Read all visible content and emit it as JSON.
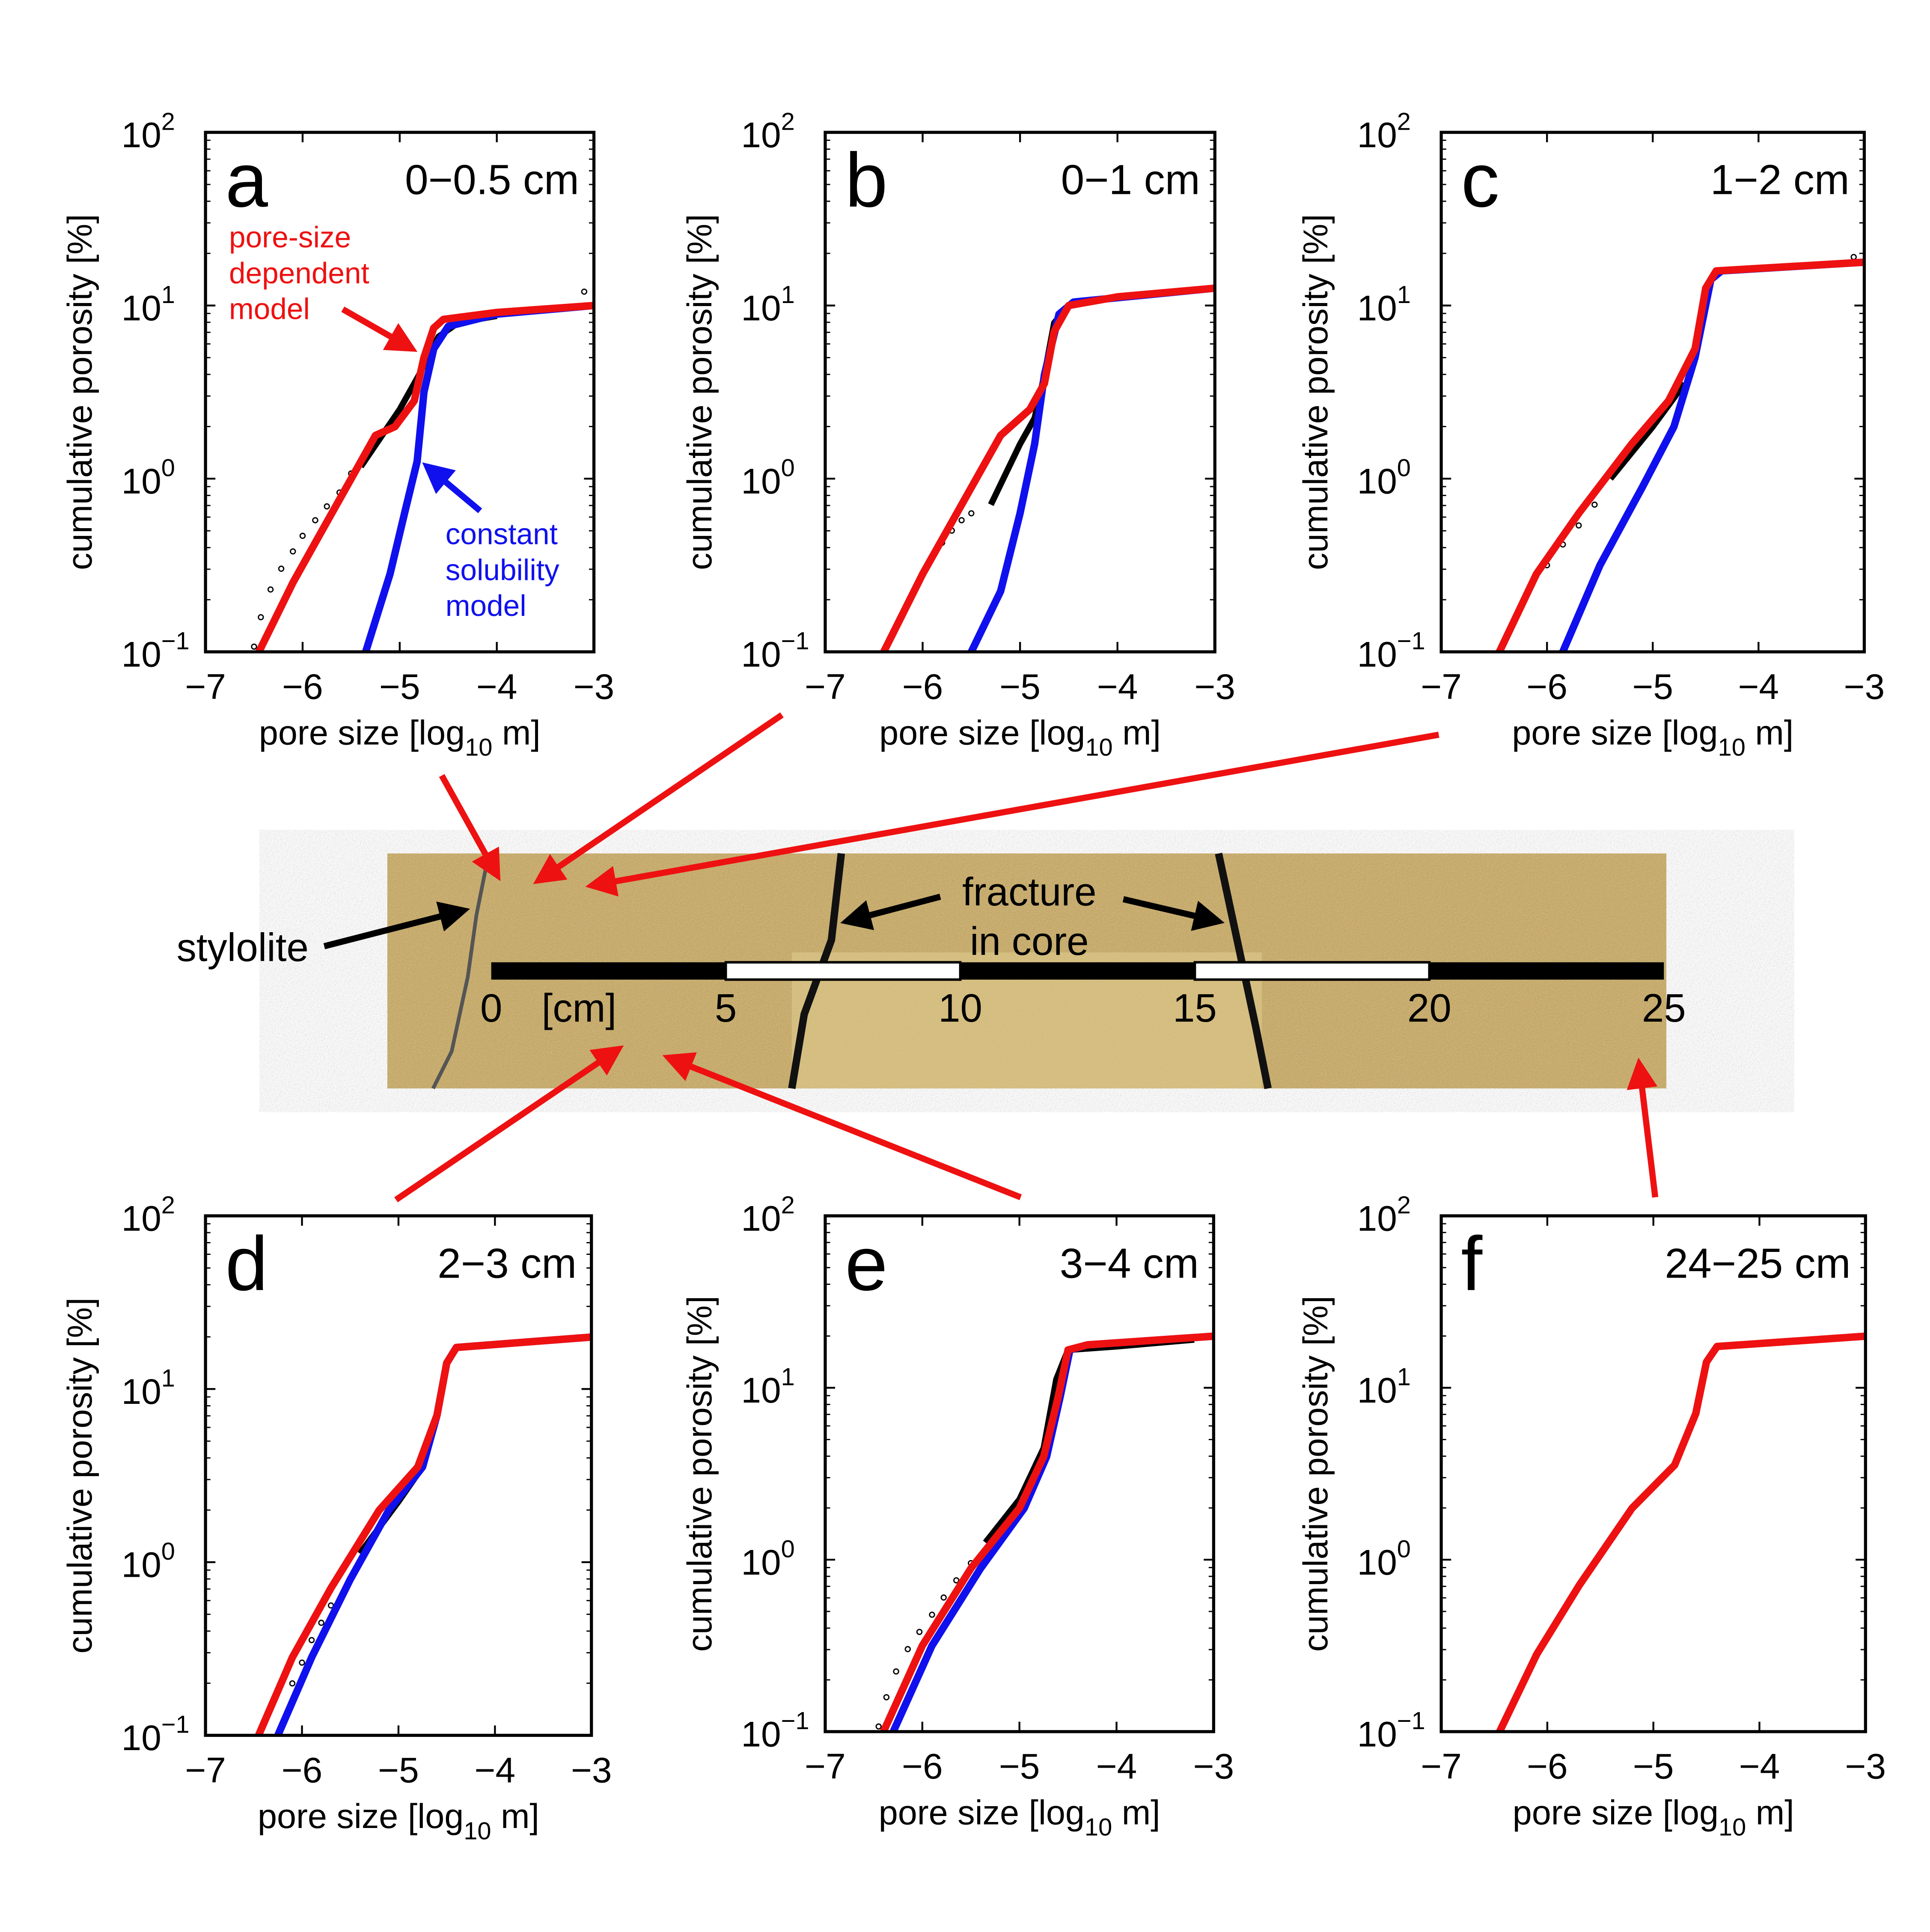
{
  "colors": {
    "data": "#000000",
    "pore_size_model": "#ee1111",
    "constant_model": "#1010ee",
    "core": "#c8a860"
  },
  "core": {
    "stylolite_label": "stylolite",
    "fracture_label_1": "fracture",
    "fracture_label_2": "in core",
    "unit_label": "[cm]",
    "scale_ticks": [
      "0",
      "5",
      "10",
      "15",
      "20",
      "25"
    ]
  },
  "annotations": {
    "red_model": [
      "pore-size",
      "dependent",
      "model"
    ],
    "blue_model": [
      "constant",
      "solubility",
      "model"
    ]
  },
  "chart_data": [
    {
      "type": "line",
      "panel": "a",
      "range_label": "0−0.5 cm",
      "xlabel": "pore size [log10 m]",
      "ylabel": "cumulative porosity [%]",
      "xlim": [
        -7,
        -3
      ],
      "ylim_log10": [
        -1,
        2
      ],
      "xticks": [
        "−7",
        "−6",
        "−5",
        "−4",
        "−3"
      ],
      "yticks": [
        "10",
        "10",
        "10",
        "10"
      ],
      "yexp": [
        "−1",
        "0",
        "1",
        "2"
      ],
      "series": [
        {
          "name": "pore-size dependent model",
          "points": [
            [
              -6.45,
              -1
            ],
            [
              -6.1,
              -0.6
            ],
            [
              -5.8,
              -0.3
            ],
            [
              -5.5,
              0
            ],
            [
              -5.25,
              0.25
            ],
            [
              -5.05,
              0.3
            ],
            [
              -4.85,
              0.45
            ],
            [
              -4.75,
              0.7
            ],
            [
              -4.65,
              0.87
            ],
            [
              -4.55,
              0.92
            ],
            [
              -4,
              0.96
            ],
            [
              -3,
              1.0
            ]
          ]
        },
        {
          "name": "constant solubility model",
          "points": [
            [
              -5.35,
              -1
            ],
            [
              -5.1,
              -0.55
            ],
            [
              -4.95,
              -0.2
            ],
            [
              -4.82,
              0.1
            ],
            [
              -4.75,
              0.5
            ],
            [
              -4.65,
              0.75
            ],
            [
              -4.5,
              0.88
            ],
            [
              -4,
              0.95
            ],
            [
              -3,
              1.0
            ]
          ]
        },
        {
          "name": "data",
          "points": [
            [
              -5.4,
              0.07
            ],
            [
              -5,
              0.4
            ],
            [
              -4.8,
              0.6
            ],
            [
              -4.6,
              0.82
            ],
            [
              -4.4,
              0.9
            ],
            [
              -4,
              0.94
            ]
          ],
          "dots": [
            [
              -6.5,
              -0.97
            ],
            [
              -6.43,
              -0.8
            ],
            [
              -6.33,
              -0.64
            ],
            [
              -6.22,
              -0.52
            ],
            [
              -6.1,
              -0.42
            ],
            [
              -6.0,
              -0.33
            ],
            [
              -5.87,
              -0.24
            ],
            [
              -5.75,
              -0.16
            ],
            [
              -5.62,
              -0.08
            ],
            [
              -5.5,
              0.03
            ],
            [
              -3.1,
              1.08
            ]
          ]
        }
      ]
    },
    {
      "type": "line",
      "panel": "b",
      "range_label": "0−1 cm",
      "xlabel": "pore size [log10 m]",
      "ylabel": "cumulative porosity [%]",
      "xlim": [
        -7,
        -3
      ],
      "ylim_log10": [
        -1,
        2
      ],
      "xticks": [
        "−7",
        "−6",
        "−5",
        "−4",
        "−3"
      ],
      "yticks": [
        "10",
        "10",
        "10",
        "10"
      ],
      "yexp": [
        "−1",
        "0",
        "1",
        "2"
      ],
      "series": [
        {
          "name": "pore-size dependent model",
          "points": [
            [
              -6.4,
              -1
            ],
            [
              -6.0,
              -0.55
            ],
            [
              -5.6,
              -0.15
            ],
            [
              -5.2,
              0.25
            ],
            [
              -4.9,
              0.4
            ],
            [
              -4.75,
              0.55
            ],
            [
              -4.65,
              0.85
            ],
            [
              -4.5,
              1.0
            ],
            [
              -4,
              1.05
            ],
            [
              -3,
              1.1
            ]
          ]
        },
        {
          "name": "constant solubility model",
          "points": [
            [
              -5.5,
              -1
            ],
            [
              -5.2,
              -0.65
            ],
            [
              -5.0,
              -0.2
            ],
            [
              -4.85,
              0.2
            ],
            [
              -4.75,
              0.6
            ],
            [
              -4.6,
              0.95
            ],
            [
              -4.45,
              1.02
            ],
            [
              -3,
              1.1
            ]
          ]
        },
        {
          "name": "data",
          "points": [
            [
              -5.3,
              -0.15
            ],
            [
              -5.0,
              0.2
            ],
            [
              -4.85,
              0.35
            ],
            [
              -4.75,
              0.6
            ],
            [
              -4.65,
              0.9
            ],
            [
              -4.5,
              1.0
            ]
          ],
          "dots": [
            [
              -6.0,
              -0.55
            ],
            [
              -5.9,
              -0.45
            ],
            [
              -5.8,
              -0.37
            ],
            [
              -5.7,
              -0.3
            ],
            [
              -5.6,
              -0.24
            ],
            [
              -5.5,
              -0.2
            ]
          ]
        }
      ]
    },
    {
      "type": "line",
      "panel": "c",
      "range_label": "1−2 cm",
      "xlabel": "pore size [log10 m]",
      "ylabel": "cumulative porosity [%]",
      "xlim": [
        -7,
        -3
      ],
      "ylim_log10": [
        -1,
        2
      ],
      "xticks": [
        "−7",
        "−6",
        "−5",
        "−4",
        "−3"
      ],
      "yticks": [
        "10",
        "10",
        "10",
        "10"
      ],
      "yexp": [
        "−1",
        "0",
        "1",
        "2"
      ],
      "series": [
        {
          "name": "pore-size dependent model",
          "points": [
            [
              -6.45,
              -1
            ],
            [
              -6.1,
              -0.55
            ],
            [
              -5.7,
              -0.2
            ],
            [
              -5.2,
              0.2
            ],
            [
              -4.85,
              0.45
            ],
            [
              -4.6,
              0.75
            ],
            [
              -4.5,
              1.1
            ],
            [
              -4.4,
              1.2
            ],
            [
              -3,
              1.25
            ]
          ]
        },
        {
          "name": "constant solubility model",
          "points": [
            [
              -5.85,
              -1
            ],
            [
              -5.5,
              -0.5
            ],
            [
              -5.1,
              -0.05
            ],
            [
              -4.8,
              0.3
            ],
            [
              -4.6,
              0.7
            ],
            [
              -4.45,
              1.15
            ],
            [
              -4.35,
              1.2
            ],
            [
              -3,
              1.25
            ]
          ]
        },
        {
          "name": "data",
          "points": [
            [
              -5.4,
              0
            ],
            [
              -5,
              0.3
            ],
            [
              -4.7,
              0.55
            ]
          ],
          "dots": [
            [
              -6.0,
              -0.5
            ],
            [
              -5.85,
              -0.38
            ],
            [
              -5.7,
              -0.27
            ],
            [
              -5.55,
              -0.15
            ],
            [
              -3.1,
              1.28
            ]
          ]
        }
      ]
    },
    {
      "type": "line",
      "panel": "d",
      "range_label": "2−3 cm",
      "xlabel": "pore size [log10 m]",
      "ylabel": "cumulative porosity [%]",
      "xlim": [
        -7,
        -3
      ],
      "ylim_log10": [
        -1,
        2
      ],
      "xticks": [
        "−7",
        "−6",
        "−5",
        "−4",
        "−3"
      ],
      "yticks": [
        "10",
        "10",
        "10",
        "10"
      ],
      "yexp": [
        "−1",
        "0",
        "1",
        "2"
      ],
      "series": [
        {
          "name": "pore-size dependent model",
          "points": [
            [
              -6.45,
              -1
            ],
            [
              -6.1,
              -0.55
            ],
            [
              -5.7,
              -0.15
            ],
            [
              -5.2,
              0.3
            ],
            [
              -4.8,
              0.55
            ],
            [
              -4.6,
              0.85
            ],
            [
              -4.5,
              1.15
            ],
            [
              -4.4,
              1.24
            ],
            [
              -3,
              1.3
            ]
          ]
        },
        {
          "name": "constant solubility model",
          "points": [
            [
              -6.25,
              -1
            ],
            [
              -5.9,
              -0.55
            ],
            [
              -5.5,
              -0.1
            ],
            [
              -5.1,
              0.3
            ],
            [
              -4.75,
              0.55
            ],
            [
              -4.6,
              0.85
            ],
            [
              -4.5,
              1.15
            ],
            [
              -4.4,
              1.24
            ],
            [
              -3,
              1.3
            ]
          ]
        },
        {
          "name": "data",
          "points": [
            [
              -5.4,
              0.05
            ],
            [
              -5.0,
              0.35
            ],
            [
              -4.75,
              0.55
            ]
          ],
          "dots": [
            [
              -6.1,
              -0.7
            ],
            [
              -6.0,
              -0.58
            ],
            [
              -5.9,
              -0.45
            ],
            [
              -5.8,
              -0.35
            ],
            [
              -5.7,
              -0.25
            ]
          ]
        }
      ]
    },
    {
      "type": "line",
      "panel": "e",
      "range_label": "3−4 cm",
      "xlabel": "pore size [log10 m]",
      "ylabel": "cumulative porosity [%]",
      "xlim": [
        -7,
        -3
      ],
      "ylim_log10": [
        -1,
        2
      ],
      "xticks": [
        "−7",
        "−6",
        "−5",
        "−4",
        "−3"
      ],
      "yticks": [
        "10",
        "10",
        "10",
        "10"
      ],
      "yexp": [
        "−1",
        "0",
        "1",
        "2"
      ],
      "series": [
        {
          "name": "pore-size dependent model",
          "points": [
            [
              -6.4,
              -1
            ],
            [
              -6.0,
              -0.5
            ],
            [
              -5.5,
              -0.05
            ],
            [
              -5.0,
              0.3
            ],
            [
              -4.75,
              0.6
            ],
            [
              -4.6,
              0.95
            ],
            [
              -4.5,
              1.22
            ],
            [
              -4.3,
              1.25
            ],
            [
              -3,
              1.3
            ]
          ]
        },
        {
          "name": "constant solubility model",
          "points": [
            [
              -6.3,
              -1
            ],
            [
              -5.9,
              -0.5
            ],
            [
              -5.4,
              -0.05
            ],
            [
              -4.95,
              0.3
            ],
            [
              -4.72,
              0.6
            ],
            [
              -4.58,
              0.95
            ],
            [
              -4.48,
              1.22
            ],
            [
              -4.3,
              1.25
            ],
            [
              -3,
              1.3
            ]
          ]
        },
        {
          "name": "data",
          "points": [
            [
              -5.35,
              0.1
            ],
            [
              -5.0,
              0.35
            ],
            [
              -4.75,
              0.65
            ],
            [
              -4.62,
              1.05
            ],
            [
              -4.5,
              1.22
            ],
            [
              -4.0,
              1.24
            ],
            [
              -3.2,
              1.28
            ]
          ],
          "dots": [
            [
              -6.45,
              -0.97
            ],
            [
              -6.37,
              -0.8
            ],
            [
              -6.27,
              -0.65
            ],
            [
              -6.15,
              -0.52
            ],
            [
              -6.03,
              -0.42
            ],
            [
              -5.9,
              -0.32
            ],
            [
              -5.78,
              -0.22
            ],
            [
              -5.65,
              -0.12
            ],
            [
              -5.5,
              -0.02
            ]
          ]
        }
      ]
    },
    {
      "type": "line",
      "panel": "f",
      "range_label": "24−25 cm",
      "xlabel": "pore size [log10 m]",
      "ylabel": "cumulative porosity [%]",
      "xlim": [
        -7,
        -3
      ],
      "ylim_log10": [
        -1,
        2
      ],
      "xticks": [
        "−7",
        "−6",
        "−5",
        "−4",
        "−3"
      ],
      "yticks": [
        "10",
        "10",
        "10",
        "10"
      ],
      "yexp": [
        "−1",
        "0",
        "1",
        "2"
      ],
      "series": [
        {
          "name": "pore-size dependent model",
          "points": [
            [
              -6.45,
              -1
            ],
            [
              -6.1,
              -0.55
            ],
            [
              -5.7,
              -0.15
            ],
            [
              -5.2,
              0.3
            ],
            [
              -4.8,
              0.55
            ],
            [
              -4.6,
              0.85
            ],
            [
              -4.5,
              1.15
            ],
            [
              -4.4,
              1.24
            ],
            [
              -3,
              1.3
            ]
          ]
        }
      ]
    }
  ]
}
